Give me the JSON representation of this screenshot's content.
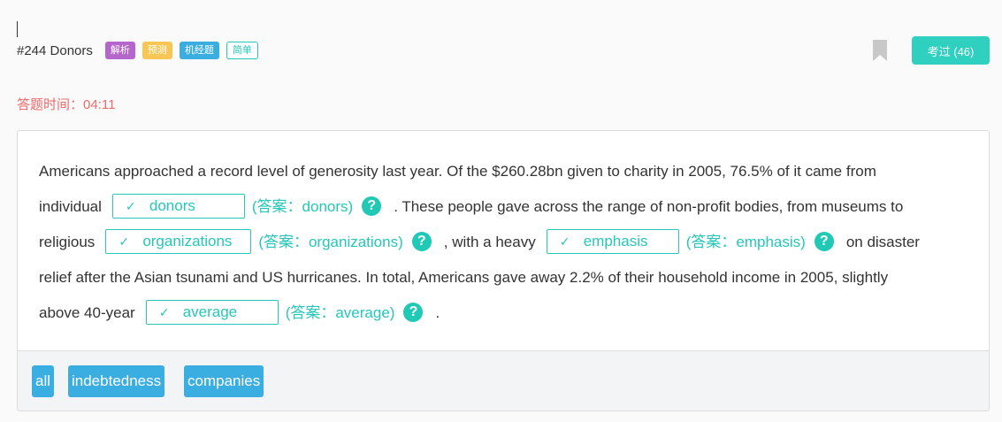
{
  "header": {
    "question_title": "#244 Donors",
    "tags": [
      "解析",
      "预测",
      "机经题",
      "简单"
    ],
    "pass_button": "考过 (46)"
  },
  "timer": "答题时间：04:11",
  "passage": {
    "p1": "Americans approached a record level of generosity last year. Of the $260.28bn given to charity in 2005, 76.5% of it came from",
    "p2": "individual",
    "p3": ". These people gave across the range of non-profit bodies, from museums to",
    "p4": "religious",
    "p5": ", with a heavy",
    "p6": "on disaster",
    "p7": "relief after the Asian tsunami and US hurricanes. In total, Americans gave away 2.2% of their household income in 2005, slightly",
    "p8": "above 40-year",
    "p9": "."
  },
  "blanks": [
    {
      "value": "donors",
      "answer": "(答案：donors)"
    },
    {
      "value": "organizations",
      "answer": "(答案：organizations)"
    },
    {
      "value": "emphasis",
      "answer": "(答案：emphasis)"
    },
    {
      "value": "average",
      "answer": "(答案：average)"
    }
  ],
  "check_glyph": "✓",
  "help_glyph": "?",
  "word_bank": [
    "all",
    "indebtedness",
    "companies"
  ],
  "colors": {
    "accent": "#26c7b8",
    "tag_purple": "#b566cc",
    "tag_yellow": "#f8c654",
    "tag_blue": "#3aaee0",
    "timer_red": "#f06a6a"
  }
}
